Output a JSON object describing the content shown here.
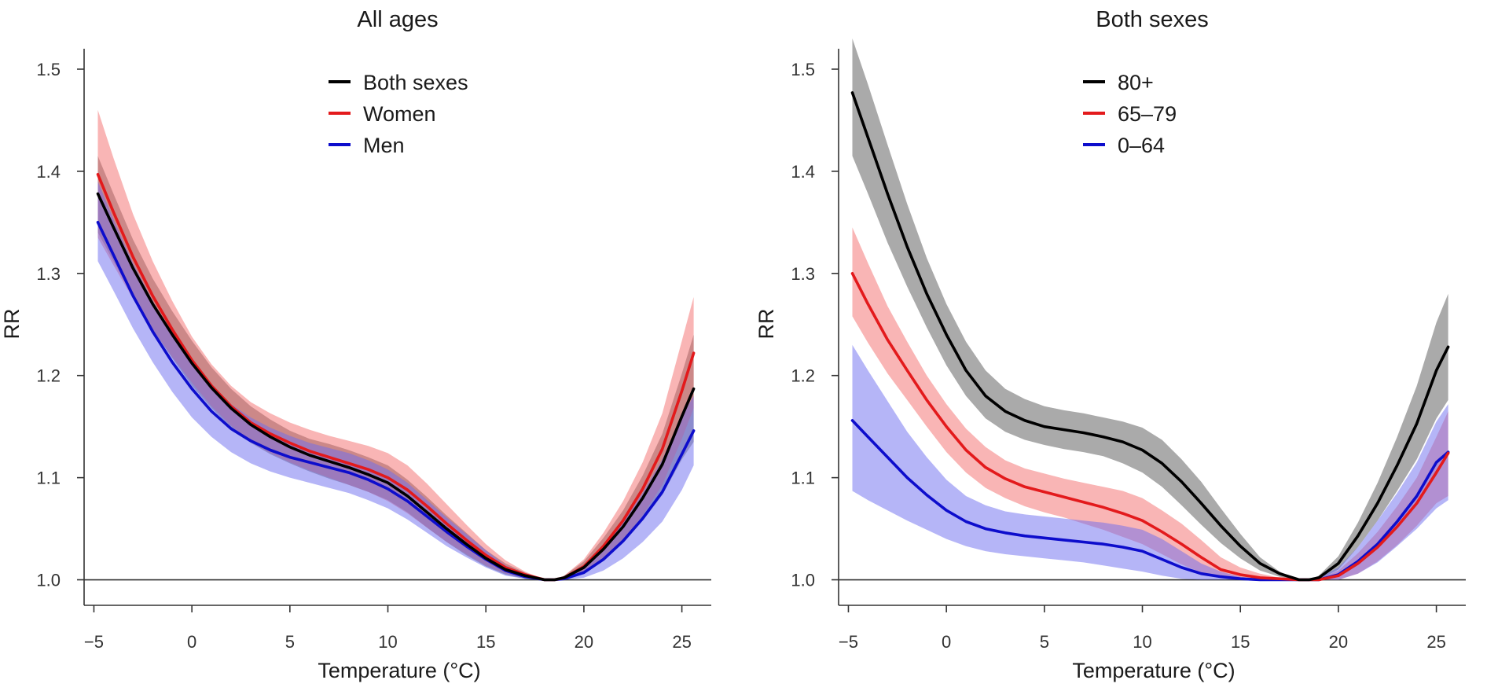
{
  "chart_data": [
    {
      "type": "line",
      "title": "All ages",
      "xlabel": "Temperature (°C)",
      "ylabel": "RR",
      "xlim": [
        -5.5,
        26.5
      ],
      "ylim": [
        0.975,
        1.52
      ],
      "xticks": [
        -5,
        0,
        5,
        10,
        15,
        20,
        25
      ],
      "xtick_labels": [
        "−5",
        "0",
        "5",
        "10",
        "15",
        "20",
        "25"
      ],
      "yticks": [
        1.0,
        1.1,
        1.2,
        1.3,
        1.4,
        1.5
      ],
      "ytick_labels": [
        "1.0",
        "1.1",
        "1.2",
        "1.3",
        "1.4",
        "1.5"
      ],
      "reference_line": 1.0,
      "legend_position": "top-center",
      "x": [
        -4.8,
        -4,
        -3,
        -2,
        -1,
        0,
        1,
        2,
        3,
        4,
        5,
        6,
        7,
        8,
        9,
        10,
        11,
        12,
        13,
        14,
        15,
        16,
        17,
        18,
        18.5,
        19,
        20,
        21,
        22,
        23,
        24,
        25,
        25.6
      ],
      "series": [
        {
          "name": "Both sexes",
          "color": "#000000",
          "band_color": "#000000",
          "band_opacity": 0.32,
          "values": [
            1.378,
            1.345,
            1.305,
            1.27,
            1.24,
            1.212,
            1.188,
            1.168,
            1.152,
            1.14,
            1.13,
            1.122,
            1.116,
            1.11,
            1.103,
            1.095,
            1.082,
            1.066,
            1.05,
            1.035,
            1.021,
            1.01,
            1.004,
            1.0,
            1.0,
            1.002,
            1.012,
            1.03,
            1.052,
            1.08,
            1.113,
            1.16,
            1.187
          ],
          "lower": [
            1.34,
            1.312,
            1.277,
            1.245,
            1.217,
            1.19,
            1.168,
            1.149,
            1.134,
            1.123,
            1.114,
            1.106,
            1.099,
            1.093,
            1.086,
            1.078,
            1.066,
            1.051,
            1.037,
            1.024,
            1.013,
            1.005,
            1.001,
            1.0,
            1.0,
            1.0,
            1.006,
            1.019,
            1.036,
            1.058,
            1.083,
            1.118,
            1.135
          ],
          "upper": [
            1.415,
            1.378,
            1.333,
            1.295,
            1.263,
            1.234,
            1.208,
            1.187,
            1.17,
            1.157,
            1.146,
            1.138,
            1.133,
            1.127,
            1.12,
            1.112,
            1.098,
            1.081,
            1.063,
            1.046,
            1.029,
            1.016,
            1.007,
            1.0,
            1.0,
            1.004,
            1.018,
            1.041,
            1.068,
            1.102,
            1.143,
            1.202,
            1.24
          ]
        },
        {
          "name": "Women",
          "color": "#e31a1c",
          "band_color": "#f15b5b",
          "band_opacity": 0.45,
          "values": [
            1.397,
            1.36,
            1.316,
            1.278,
            1.245,
            1.215,
            1.19,
            1.17,
            1.154,
            1.143,
            1.134,
            1.126,
            1.12,
            1.114,
            1.108,
            1.1,
            1.088,
            1.072,
            1.055,
            1.039,
            1.024,
            1.012,
            1.005,
            1.0,
            1.0,
            1.002,
            1.013,
            1.033,
            1.058,
            1.089,
            1.128,
            1.185,
            1.222
          ],
          "lower": [
            1.335,
            1.308,
            1.275,
            1.245,
            1.218,
            1.193,
            1.17,
            1.151,
            1.135,
            1.124,
            1.115,
            1.107,
            1.1,
            1.093,
            1.086,
            1.077,
            1.065,
            1.051,
            1.037,
            1.025,
            1.014,
            1.006,
            1.002,
            1.0,
            1.0,
            1.0,
            1.006,
            1.02,
            1.039,
            1.063,
            1.093,
            1.138,
            1.168
          ],
          "upper": [
            1.46,
            1.413,
            1.358,
            1.312,
            1.273,
            1.238,
            1.211,
            1.19,
            1.174,
            1.163,
            1.154,
            1.147,
            1.141,
            1.136,
            1.131,
            1.124,
            1.112,
            1.094,
            1.074,
            1.054,
            1.035,
            1.019,
            1.008,
            1.0,
            1.0,
            1.004,
            1.02,
            1.046,
            1.077,
            1.115,
            1.163,
            1.234,
            1.277
          ]
        },
        {
          "name": "Men",
          "color": "#0d0dcc",
          "band_color": "#6b6bf0",
          "band_opacity": 0.5,
          "values": [
            1.35,
            1.318,
            1.278,
            1.243,
            1.213,
            1.187,
            1.165,
            1.148,
            1.136,
            1.127,
            1.12,
            1.115,
            1.11,
            1.105,
            1.098,
            1.089,
            1.077,
            1.062,
            1.047,
            1.033,
            1.02,
            1.009,
            1.003,
            1.0,
            1.0,
            1.001,
            1.007,
            1.02,
            1.038,
            1.06,
            1.086,
            1.123,
            1.146
          ],
          "lower": [
            1.312,
            1.283,
            1.246,
            1.213,
            1.184,
            1.159,
            1.14,
            1.125,
            1.114,
            1.106,
            1.1,
            1.095,
            1.09,
            1.085,
            1.078,
            1.07,
            1.059,
            1.046,
            1.033,
            1.022,
            1.012,
            1.004,
            1.001,
            1.0,
            1.0,
            1.0,
            1.002,
            1.009,
            1.021,
            1.037,
            1.057,
            1.088,
            1.112
          ],
          "upper": [
            1.39,
            1.353,
            1.31,
            1.273,
            1.241,
            1.212,
            1.19,
            1.172,
            1.159,
            1.149,
            1.141,
            1.134,
            1.129,
            1.124,
            1.117,
            1.108,
            1.095,
            1.078,
            1.061,
            1.045,
            1.029,
            1.014,
            1.006,
            1.0,
            1.0,
            1.003,
            1.013,
            1.032,
            1.056,
            1.085,
            1.118,
            1.16,
            1.18
          ]
        }
      ]
    },
    {
      "type": "line",
      "title": "Both sexes",
      "xlabel": "Temperature (°C)",
      "ylabel": "RR",
      "xlim": [
        -5.5,
        26.5
      ],
      "ylim": [
        0.975,
        1.52
      ],
      "xticks": [
        -5,
        0,
        5,
        10,
        15,
        20,
        25
      ],
      "xtick_labels": [
        "−5",
        "0",
        "5",
        "10",
        "15",
        "20",
        "25"
      ],
      "yticks": [
        1.0,
        1.1,
        1.2,
        1.3,
        1.4,
        1.5
      ],
      "ytick_labels": [
        "1.0",
        "1.1",
        "1.2",
        "1.3",
        "1.4",
        "1.5"
      ],
      "reference_line": 1.0,
      "legend_position": "top-center",
      "x": [
        -4.8,
        -4,
        -3,
        -2,
        -1,
        0,
        1,
        2,
        3,
        4,
        5,
        6,
        7,
        8,
        9,
        10,
        11,
        12,
        13,
        14,
        15,
        16,
        17,
        18,
        18.5,
        19,
        20,
        21,
        22,
        23,
        24,
        25,
        25.6
      ],
      "series": [
        {
          "name": "80+",
          "color": "#000000",
          "band_color": "#555555",
          "band_opacity": 0.5,
          "values": [
            1.477,
            1.433,
            1.378,
            1.326,
            1.28,
            1.24,
            1.205,
            1.18,
            1.165,
            1.156,
            1.15,
            1.147,
            1.144,
            1.14,
            1.135,
            1.127,
            1.114,
            1.096,
            1.075,
            1.053,
            1.033,
            1.016,
            1.006,
            1.0,
            1.0,
            1.002,
            1.016,
            1.043,
            1.075,
            1.112,
            1.153,
            1.205,
            1.228
          ],
          "lower": [
            1.415,
            1.378,
            1.33,
            1.287,
            1.247,
            1.21,
            1.18,
            1.158,
            1.145,
            1.137,
            1.132,
            1.128,
            1.125,
            1.121,
            1.114,
            1.105,
            1.091,
            1.073,
            1.054,
            1.036,
            1.021,
            1.009,
            1.003,
            1.0,
            1.0,
            1.0,
            1.01,
            1.032,
            1.058,
            1.087,
            1.118,
            1.158,
            1.176
          ],
          "upper": [
            1.53,
            1.485,
            1.426,
            1.368,
            1.315,
            1.27,
            1.233,
            1.205,
            1.187,
            1.177,
            1.17,
            1.166,
            1.163,
            1.159,
            1.155,
            1.149,
            1.137,
            1.118,
            1.096,
            1.07,
            1.045,
            1.022,
            1.008,
            1.0,
            1.0,
            1.004,
            1.023,
            1.056,
            1.095,
            1.14,
            1.19,
            1.252,
            1.28
          ]
        },
        {
          "name": "65–79",
          "color": "#e31a1c",
          "band_color": "#f15b5b",
          "band_opacity": 0.45,
          "values": [
            1.3,
            1.27,
            1.235,
            1.205,
            1.176,
            1.15,
            1.127,
            1.11,
            1.099,
            1.091,
            1.086,
            1.081,
            1.076,
            1.071,
            1.065,
            1.058,
            1.047,
            1.035,
            1.022,
            1.01,
            1.005,
            1.002,
            1.001,
            1.0,
            1.0,
            1.0,
            1.004,
            1.016,
            1.032,
            1.052,
            1.075,
            1.105,
            1.124
          ],
          "lower": [
            1.258,
            1.232,
            1.202,
            1.176,
            1.15,
            1.125,
            1.105,
            1.09,
            1.08,
            1.072,
            1.066,
            1.061,
            1.055,
            1.049,
            1.042,
            1.035,
            1.025,
            1.015,
            1.007,
            1.002,
            1.0,
            1.0,
            1.0,
            1.0,
            1.0,
            1.0,
            1.0,
            1.006,
            1.018,
            1.034,
            1.053,
            1.075,
            1.082
          ],
          "upper": [
            1.345,
            1.31,
            1.268,
            1.233,
            1.2,
            1.172,
            1.148,
            1.13,
            1.117,
            1.109,
            1.104,
            1.099,
            1.095,
            1.091,
            1.087,
            1.08,
            1.068,
            1.055,
            1.039,
            1.022,
            1.012,
            1.006,
            1.002,
            1.0,
            1.0,
            1.001,
            1.009,
            1.026,
            1.047,
            1.072,
            1.1,
            1.14,
            1.165
          ]
        },
        {
          "name": "0–64",
          "color": "#0d0dcc",
          "band_color": "#6b6bf0",
          "band_opacity": 0.5,
          "values": [
            1.156,
            1.14,
            1.12,
            1.1,
            1.083,
            1.068,
            1.057,
            1.05,
            1.046,
            1.043,
            1.041,
            1.039,
            1.037,
            1.035,
            1.032,
            1.028,
            1.02,
            1.012,
            1.006,
            1.003,
            1.001,
            1.0,
            1.0,
            1.0,
            1.0,
            1.0,
            1.005,
            1.018,
            1.035,
            1.057,
            1.082,
            1.115,
            1.125
          ],
          "lower": [
            1.087,
            1.078,
            1.068,
            1.058,
            1.049,
            1.04,
            1.033,
            1.028,
            1.025,
            1.023,
            1.021,
            1.019,
            1.017,
            1.014,
            1.011,
            1.008,
            1.004,
            1.001,
            1.0,
            1.0,
            1.0,
            1.0,
            1.0,
            1.0,
            1.0,
            1.0,
            1.0,
            1.006,
            1.017,
            1.033,
            1.05,
            1.07,
            1.078
          ],
          "upper": [
            1.23,
            1.205,
            1.175,
            1.145,
            1.12,
            1.098,
            1.082,
            1.073,
            1.067,
            1.064,
            1.062,
            1.06,
            1.058,
            1.056,
            1.053,
            1.049,
            1.04,
            1.028,
            1.016,
            1.008,
            1.003,
            1.001,
            1.0,
            1.0,
            1.0,
            1.002,
            1.012,
            1.032,
            1.058,
            1.085,
            1.115,
            1.155,
            1.172
          ]
        }
      ]
    }
  ]
}
